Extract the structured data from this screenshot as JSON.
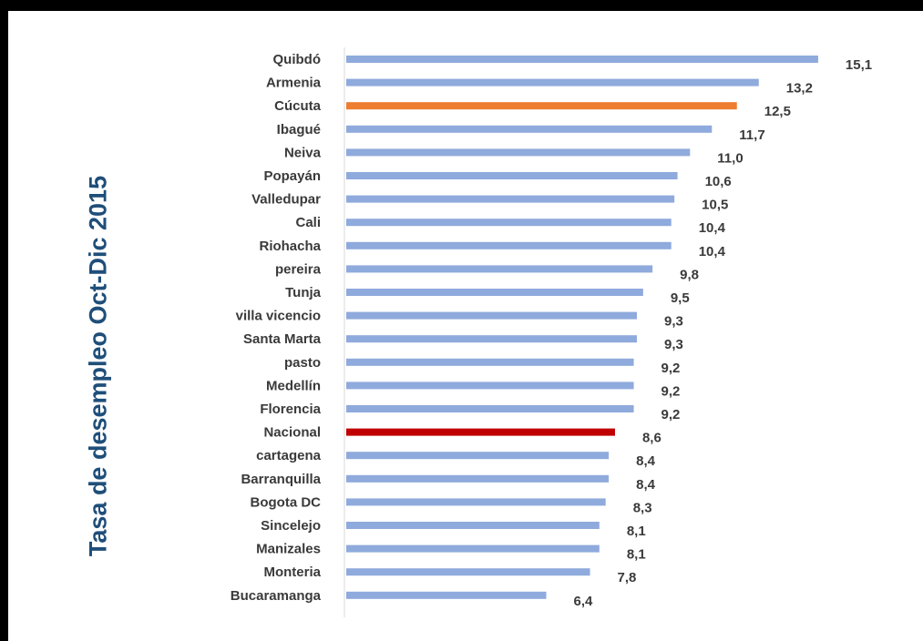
{
  "colors": {
    "default_bar": "#8faadc",
    "highlight_orange": "#ed7d31",
    "highlight_red": "#c00000",
    "axis_title": "#1f4e79",
    "label_text": "#3a3a3a"
  },
  "chart_data": {
    "type": "bar",
    "orientation": "horizontal",
    "title": "",
    "xlabel": "",
    "ylabel": "Tasa de desempleo Oct-Dic 2015",
    "xlim": [
      0,
      16
    ],
    "grid": false,
    "legend": "none",
    "categories": [
      "Quibdó",
      "Armenia",
      "Cúcuta",
      "Ibagué",
      "Neiva",
      "Popayán",
      "Valledupar",
      "Cali",
      "Riohacha",
      "pereira",
      "Tunja",
      "villa vicencio",
      "Santa Marta",
      "pasto",
      "Medellín",
      "Florencia",
      "Nacional",
      "cartagena",
      "Barranquilla",
      "Bogota DC",
      "Sincelejo",
      "Manizales",
      "Monteria",
      "Bucaramanga"
    ],
    "values": [
      15.1,
      13.2,
      12.5,
      11.7,
      11.0,
      10.6,
      10.5,
      10.4,
      10.4,
      9.8,
      9.5,
      9.3,
      9.3,
      9.2,
      9.2,
      9.2,
      8.6,
      8.4,
      8.4,
      8.3,
      8.1,
      8.1,
      7.8,
      6.4
    ],
    "value_labels": [
      "15,1",
      "13,2",
      "12,5",
      "11,7",
      "11,0",
      "10,6",
      "10,5",
      "10,4",
      "10,4",
      "9,8",
      "9,5",
      "9,3",
      "9,3",
      "9,2",
      "9,2",
      "9,2",
      "8,6",
      "8,4",
      "8,4",
      "8,3",
      "8,1",
      "8,1",
      "7,8",
      "6,4"
    ],
    "bar_colors": [
      "#8faadc",
      "#8faadc",
      "#ed7d31",
      "#8faadc",
      "#8faadc",
      "#8faadc",
      "#8faadc",
      "#8faadc",
      "#8faadc",
      "#8faadc",
      "#8faadc",
      "#8faadc",
      "#8faadc",
      "#8faadc",
      "#8faadc",
      "#8faadc",
      "#c00000",
      "#8faadc",
      "#8faadc",
      "#8faadc",
      "#8faadc",
      "#8faadc",
      "#8faadc",
      "#8faadc"
    ]
  }
}
